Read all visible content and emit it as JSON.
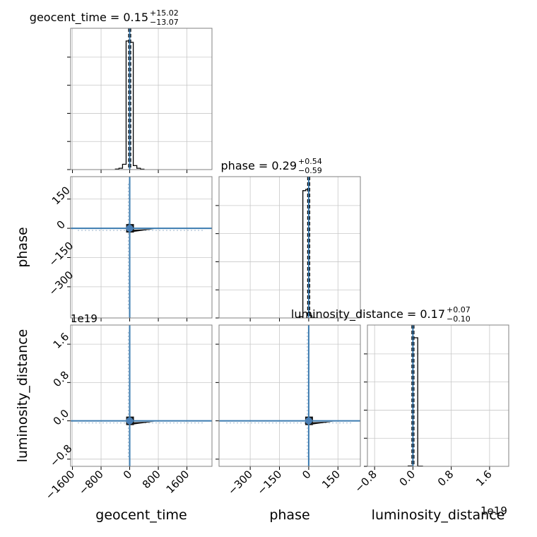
{
  "chart_data": {
    "type": "corner",
    "parameters": [
      "geocent_time",
      "phase",
      "luminosity_distance"
    ],
    "titles": [
      {
        "name": "geocent_time",
        "median": "0.15",
        "plus": "+15.02",
        "minus": "−13.07"
      },
      {
        "name": "phase",
        "median": "0.29",
        "plus": "+0.54",
        "minus": "−0.59"
      },
      {
        "name": "luminosity_distance",
        "median": "0.17",
        "plus": "+0.07",
        "minus": "−0.10"
      }
    ],
    "axes": {
      "geocent_time": {
        "range": [
          -1650,
          2300
        ],
        "ticks": [
          -1600,
          -800,
          0,
          800,
          1600
        ],
        "tick_labels": [
          "−1600",
          "−800",
          "0",
          "800",
          "1600"
        ]
      },
      "phase": {
        "range": [
          -460,
          265
        ],
        "ticks": [
          -300,
          -150,
          0,
          150
        ],
        "tick_labels": [
          "−300",
          "−150",
          "0",
          "150"
        ]
      },
      "luminosity_distance": {
        "range": [
          -0.95,
          2.0
        ],
        "ticks": [
          -0.8,
          0.0,
          0.8,
          1.6
        ],
        "tick_labels": [
          "−0.8",
          "0.0",
          "0.8",
          "1.6"
        ],
        "offset_text": "1e19"
      }
    },
    "truths": {
      "geocent_time": 0,
      "phase": 0,
      "luminosity_distance": 0
    },
    "histograms": {
      "geocent_time": {
        "bins": [
          -400,
          -300,
          -200,
          -100,
          0,
          100,
          200,
          300,
          400
        ],
        "counts": [
          0.004,
          0.01,
          0.04,
          0.97,
          0.96,
          0.03,
          0.01,
          0.003
        ]
      },
      "phase": {
        "bins": [
          -60,
          -45,
          -30,
          -15,
          0,
          15,
          30,
          45
        ],
        "counts": [
          0.003,
          0.01,
          0.99,
          1.0,
          0.02,
          0.004,
          0.001
        ]
      },
      "luminosity_distance": {
        "bins": [
          -0.1,
          0.0,
          0.1,
          0.2
        ],
        "counts": [
          0.003,
          1.0,
          0.002
        ]
      }
    },
    "grid": true
  }
}
